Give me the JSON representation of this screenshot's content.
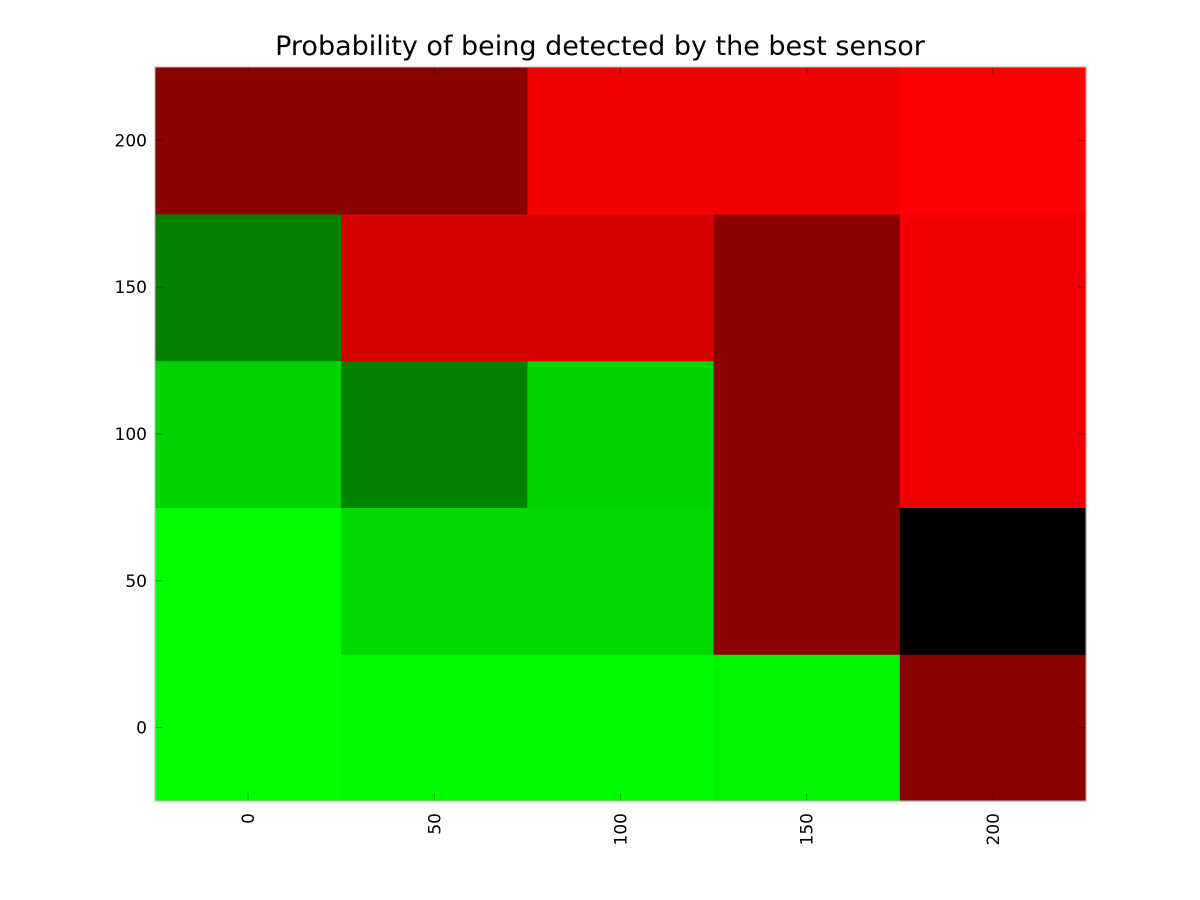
{
  "chart_data": {
    "type": "heatmap",
    "title": "Probability of being detected by the best sensor",
    "xlabel": "",
    "ylabel": "",
    "x": [
      0,
      50,
      100,
      150,
      200
    ],
    "y": [
      0,
      50,
      100,
      150,
      200
    ],
    "x_tick_labels": [
      "0",
      "50",
      "100",
      "150",
      "200"
    ],
    "y_tick_labels": [
      "0",
      "50",
      "100",
      "150",
      "200"
    ],
    "x_tick_rotation_deg": -90,
    "y_direction": "bottom-to-top",
    "colormap": "green-to-red",
    "grid": false,
    "colorbar": false,
    "cell_colors": [
      [
        "#00ff00",
        "#00fc00",
        "#00fc00",
        "#00f300",
        "#8b0000"
      ],
      [
        "#00ff00",
        "#00d900",
        "#00d900",
        "#8b0000",
        "#000000"
      ],
      [
        "#00d400",
        "#008100",
        "#00d400",
        "#8b0000",
        "#f20000"
      ],
      [
        "#008100",
        "#d80000",
        "#d80000",
        "#8b0000",
        "#f20000"
      ],
      [
        "#8b0000",
        "#8b0000",
        "#f30000",
        "#f30000",
        "#ff0000"
      ]
    ]
  }
}
